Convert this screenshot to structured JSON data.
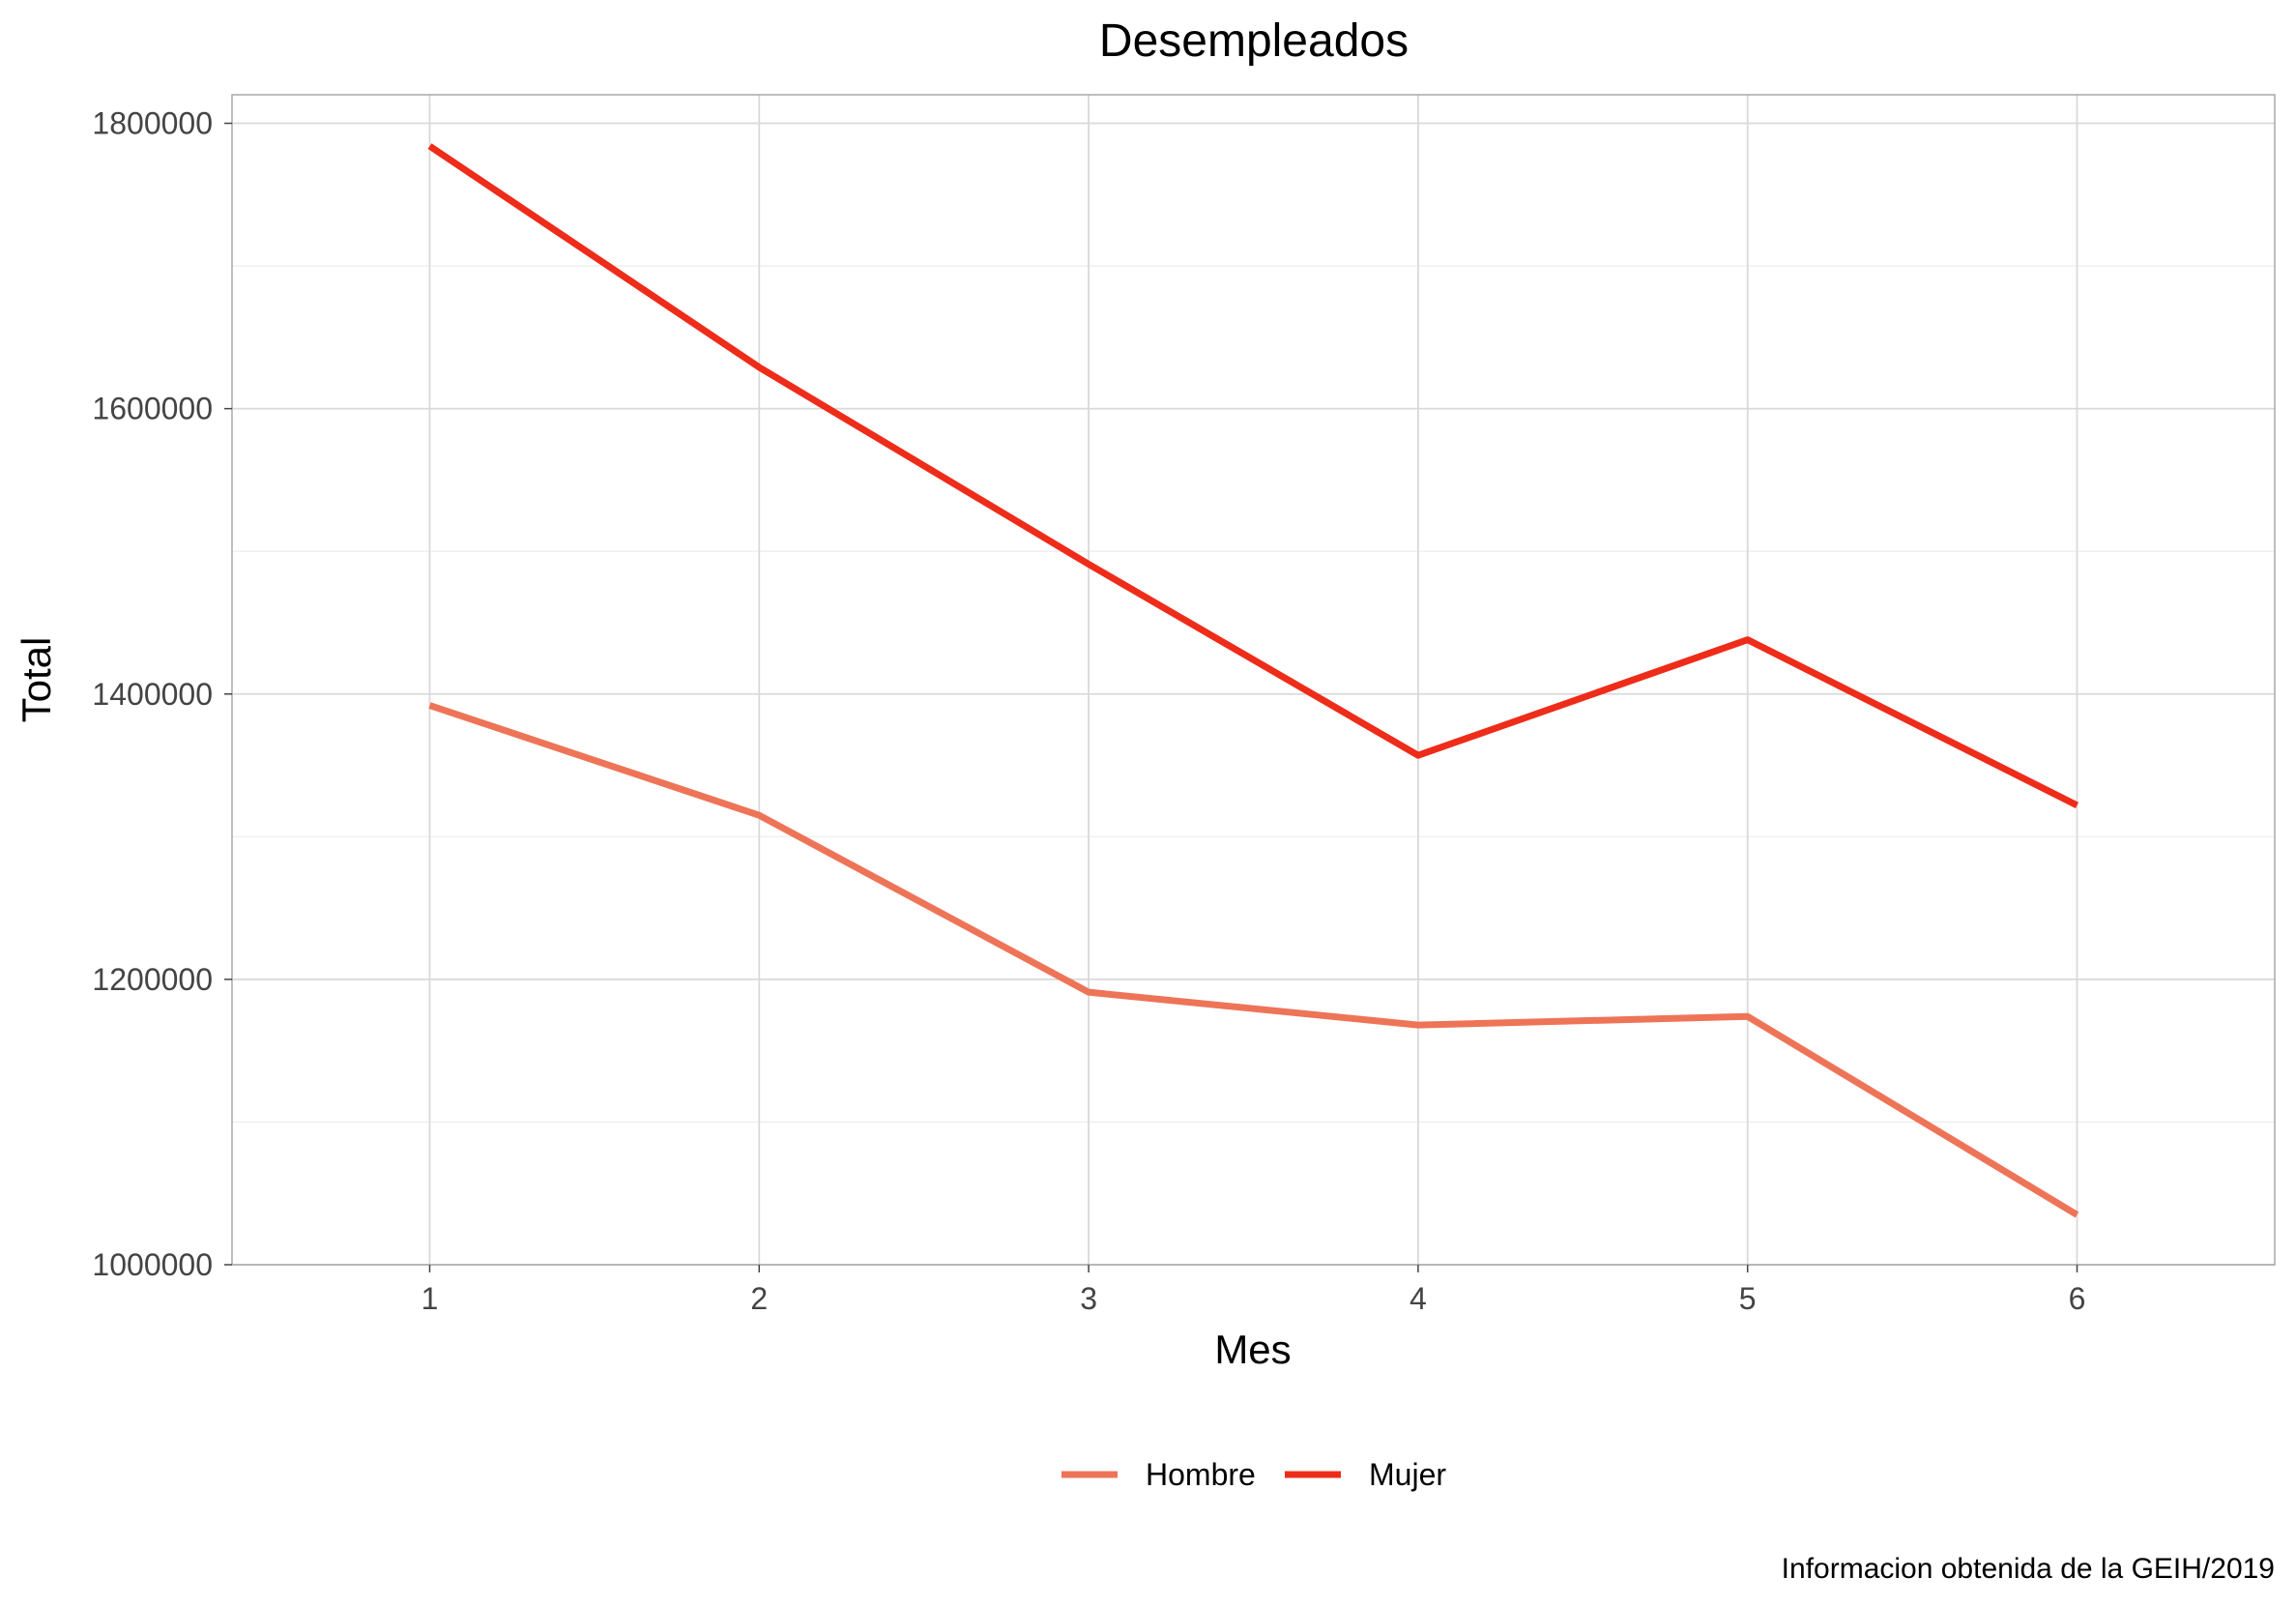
{
  "chart_data": {
    "type": "line",
    "title": "Desempleados",
    "xlabel": "Mes",
    "ylabel": "Total",
    "caption": "Informacion obtenida de la GEIH/2019",
    "x": [
      1,
      2,
      3,
      4,
      5,
      6
    ],
    "xlim": [
      0.4,
      6.6
    ],
    "ylim": [
      1000000,
      1820000
    ],
    "y_ticks": [
      1000000,
      1200000,
      1400000,
      1600000,
      1800000
    ],
    "y_tick_labels": [
      "1000000",
      "1200000",
      "1400000",
      "1600000",
      "1800000"
    ],
    "x_tick_labels": [
      "1",
      "2",
      "3",
      "4",
      "5",
      "6"
    ],
    "grid": true,
    "legend_position": "bottom",
    "series": [
      {
        "name": "Hombre",
        "color": "#EE7458",
        "values": [
          1392000,
          1315000,
          1191000,
          1168000,
          1174000,
          1035000
        ]
      },
      {
        "name": "Mujer",
        "color": "#EE2C1A",
        "values": [
          1784000,
          1629000,
          1491000,
          1357000,
          1438000,
          1322000
        ]
      }
    ]
  }
}
